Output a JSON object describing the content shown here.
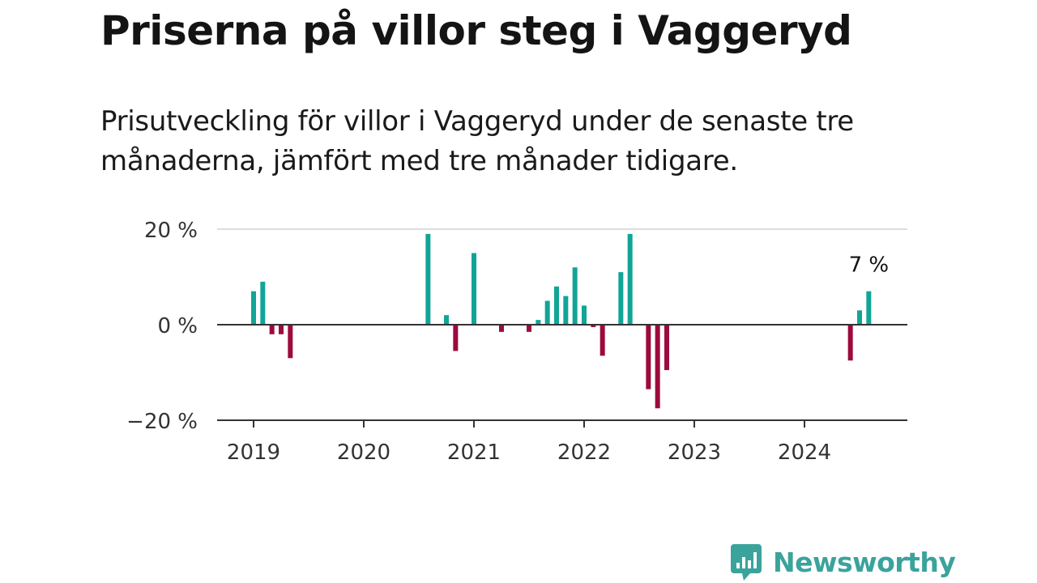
{
  "header": {
    "title": "Priserna på villor steg i Vaggeryd",
    "subtitle": "Prisutveckling för villor i Vaggeryd under de senaste tre månaderna, jämfört med tre månader tidigare."
  },
  "brand": {
    "name": "Newsworthy",
    "icon": "newsworthy-logo-icon",
    "color": "#3aa39c"
  },
  "colors": {
    "positive": "#11a597",
    "negative": "#9c0a3e",
    "axis": "#333333",
    "grid": "#dddddd"
  },
  "chart_data": {
    "type": "bar",
    "title": "Priserna på villor steg i Vaggeryd",
    "xlabel": "",
    "ylabel": "",
    "ylim": [
      -20,
      20
    ],
    "grid": true,
    "legend": "none",
    "y_ticks": [
      {
        "value": 20,
        "label": "20 %"
      },
      {
        "value": 0,
        "label": "0 %"
      },
      {
        "value": -20,
        "label": "−20 %"
      }
    ],
    "x_ticks": [
      {
        "date": "2019-01",
        "label": "2019"
      },
      {
        "date": "2020-01",
        "label": "2020"
      },
      {
        "date": "2021-01",
        "label": "2021"
      },
      {
        "date": "2022-01",
        "label": "2022"
      },
      {
        "date": "2023-01",
        "label": "2023"
      },
      {
        "date": "2024-01",
        "label": "2024"
      }
    ],
    "x_range": [
      "2018-09",
      "2024-12"
    ],
    "series": [
      {
        "values": [
          {
            "date": "2019-01",
            "value": 7
          },
          {
            "date": "2019-02",
            "value": 9
          },
          {
            "date": "2019-03",
            "value": -2
          },
          {
            "date": "2019-04",
            "value": -2
          },
          {
            "date": "2019-05",
            "value": -7
          },
          {
            "date": "2020-08",
            "value": 19
          },
          {
            "date": "2020-10",
            "value": 2
          },
          {
            "date": "2020-11",
            "value": -5.5
          },
          {
            "date": "2021-01",
            "value": 15
          },
          {
            "date": "2021-04",
            "value": -1.5
          },
          {
            "date": "2021-07",
            "value": -1.5
          },
          {
            "date": "2021-08",
            "value": 1
          },
          {
            "date": "2021-09",
            "value": 5
          },
          {
            "date": "2021-10",
            "value": 8
          },
          {
            "date": "2021-11",
            "value": 6
          },
          {
            "date": "2021-12",
            "value": 12
          },
          {
            "date": "2022-01",
            "value": 4
          },
          {
            "date": "2022-02",
            "value": -0.5
          },
          {
            "date": "2022-03",
            "value": -6.5
          },
          {
            "date": "2022-05",
            "value": 11
          },
          {
            "date": "2022-06",
            "value": 19
          },
          {
            "date": "2022-08",
            "value": -13.5
          },
          {
            "date": "2022-09",
            "value": -17.5
          },
          {
            "date": "2022-10",
            "value": -9.5
          },
          {
            "date": "2024-06",
            "value": -7.5
          },
          {
            "date": "2024-07",
            "value": 3
          },
          {
            "date": "2024-08",
            "value": 7
          }
        ]
      }
    ],
    "annotations": [
      {
        "date": "2024-08",
        "label": "7 %"
      }
    ]
  }
}
